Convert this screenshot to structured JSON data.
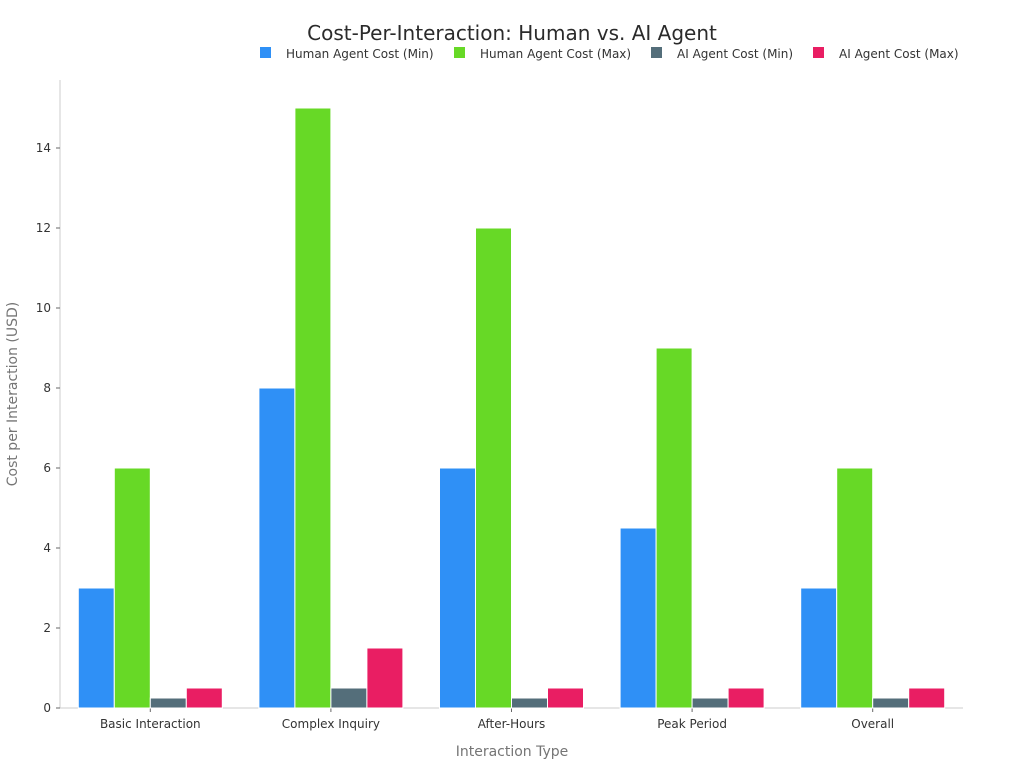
{
  "chart_data": {
    "type": "bar",
    "title": "Cost-Per-Interaction: Human vs. AI Agent",
    "xlabel": "Interaction Type",
    "ylabel": "Cost per Interaction (USD)",
    "categories": [
      "Basic Interaction",
      "Complex Inquiry",
      "After-Hours",
      "Peak Period",
      "Overall"
    ],
    "series": [
      {
        "name": "Human Agent Cost (Min)",
        "color": "#2f90f6",
        "values": [
          3,
          8,
          6,
          4.5,
          3
        ]
      },
      {
        "name": "Human Agent Cost (Max)",
        "color": "#67d926",
        "values": [
          6,
          15,
          12,
          9,
          6
        ]
      },
      {
        "name": "AI Agent Cost (Min)",
        "color": "#546e7a",
        "values": [
          0.25,
          0.5,
          0.25,
          0.25,
          0.25
        ]
      },
      {
        "name": "AI Agent Cost (Max)",
        "color": "#e91e63",
        "values": [
          0.5,
          1.5,
          0.5,
          0.5,
          0.5
        ]
      }
    ],
    "ylim": [
      0,
      15.7
    ],
    "yticks": [
      0,
      2,
      4,
      6,
      8,
      10,
      12,
      14
    ],
    "grid": false,
    "legend_position": "top-right"
  }
}
